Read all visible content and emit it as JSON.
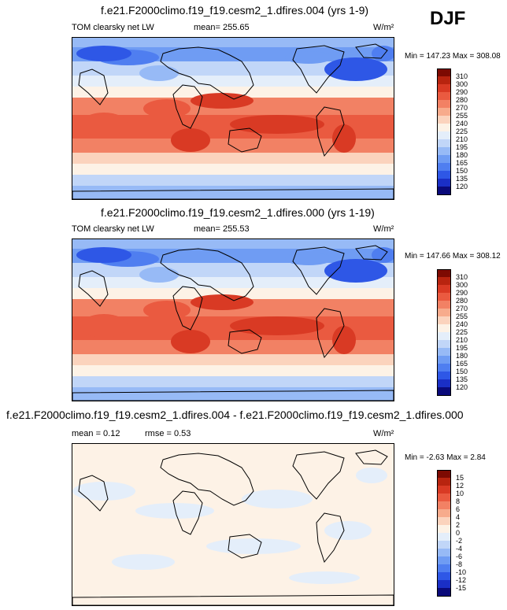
{
  "season": "DJF",
  "colors": {
    "abs_levels": [
      "#0a0a7a",
      "#1a2fc6",
      "#2e57e6",
      "#4f7ef0",
      "#6f9cf3",
      "#97baf6",
      "#c1d6f8",
      "#e4eefa",
      "#fdf2e6",
      "#fbd3bd",
      "#f7ab8c",
      "#f28164",
      "#ea5a40",
      "#d93a24",
      "#b8240f",
      "#7d0a02"
    ],
    "diff_levels": [
      "#0a0a7a",
      "#1a2fc6",
      "#2e57e6",
      "#4f7ef0",
      "#6f9cf3",
      "#97baf6",
      "#c1d6f8",
      "#e4eefa",
      "#fdf2e6",
      "#fbd3bd",
      "#f7ab8c",
      "#f28164",
      "#ea5a40",
      "#d93a24",
      "#b8240f",
      "#7d0a02"
    ]
  },
  "panels": [
    {
      "title": "f.e21.F2000climo.f19_f19.cesm2_1.dfires.004 (yrs 1-9)",
      "left_label": "TOM clearsky net LW",
      "mean_text": "mean= 255.65",
      "units_text": "W/m²",
      "minmax_text": "Min = 147.23 Max = 308.08",
      "cbar_labels": [
        "310",
        "300",
        "290",
        "280",
        "270",
        "255",
        "240",
        "225",
        "210",
        "195",
        "180",
        "165",
        "150",
        "135",
        "120"
      ]
    },
    {
      "title": "f.e21.F2000climo.f19_f19.cesm2_1.dfires.000 (yrs 1-19)",
      "left_label": "TOM clearsky net LW",
      "mean_text": "mean= 255.53",
      "units_text": "W/m²",
      "minmax_text": "Min = 147.66 Max = 308.12",
      "cbar_labels": [
        "310",
        "300",
        "290",
        "280",
        "270",
        "255",
        "240",
        "225",
        "210",
        "195",
        "180",
        "165",
        "150",
        "135",
        "120"
      ]
    },
    {
      "title": "f.e21.F2000climo.f19_f19.cesm2_1.dfires.004 - f.e21.F2000climo.f19_f19.cesm2_1.dfires.000",
      "left_label": "mean =   0.12",
      "mean_text": "rmse =   0.53",
      "units_text": "W/m²",
      "minmax_text": "Min =  -2.63 Max =   2.84",
      "cbar_labels": [
        "15",
        "12",
        "10",
        "8",
        "6",
        "4",
        "2",
        "0",
        "-2",
        "-4",
        "-6",
        "-8",
        "-10",
        "-12",
        "-15"
      ]
    }
  ],
  "chart_data": [
    {
      "type": "heatmap",
      "title": "f.e21.F2000climo.f19_f19.cesm2_1.dfires.004 (yrs 1-9)",
      "variable": "TOM clearsky net LW",
      "units": "W/m²",
      "season": "DJF",
      "mean": 255.65,
      "min": 147.23,
      "max": 308.08,
      "levels": [
        120,
        135,
        150,
        165,
        180,
        195,
        210,
        225,
        240,
        255,
        270,
        280,
        290,
        300,
        310
      ]
    },
    {
      "type": "heatmap",
      "title": "f.e21.F2000climo.f19_f19.cesm2_1.dfires.000 (yrs 1-19)",
      "variable": "TOM clearsky net LW",
      "units": "W/m²",
      "season": "DJF",
      "mean": 255.53,
      "min": 147.66,
      "max": 308.12,
      "levels": [
        120,
        135,
        150,
        165,
        180,
        195,
        210,
        225,
        240,
        255,
        270,
        280,
        290,
        300,
        310
      ]
    },
    {
      "type": "heatmap",
      "title": "f.e21.F2000climo.f19_f19.cesm2_1.dfires.004 - f.e21.F2000climo.f19_f19.cesm2_1.dfires.000",
      "units": "W/m²",
      "mean": 0.12,
      "rmse": 0.53,
      "min": -2.63,
      "max": 2.84,
      "levels": [
        -15,
        -12,
        -10,
        -8,
        -6,
        -4,
        -2,
        0,
        2,
        4,
        6,
        8,
        10,
        12,
        15
      ]
    }
  ]
}
